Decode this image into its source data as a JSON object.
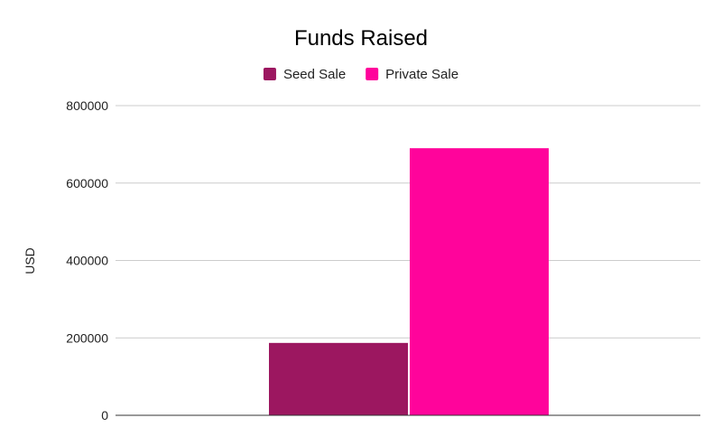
{
  "chart_data": {
    "type": "bar",
    "title": "Funds Raised",
    "xlabel": "",
    "ylabel": "USD",
    "ylim": [
      0,
      800000
    ],
    "yticks": [
      0,
      200000,
      400000,
      600000,
      800000
    ],
    "ytick_labels": [
      "0",
      "200000",
      "400000",
      "600000",
      "800000"
    ],
    "grid": true,
    "legend_position": "top",
    "series": [
      {
        "name": "Seed Sale",
        "values": [
          187000
        ],
        "color": "#9c1760"
      },
      {
        "name": "Private Sale",
        "values": [
          690000
        ],
        "color": "#ff049b"
      }
    ]
  }
}
